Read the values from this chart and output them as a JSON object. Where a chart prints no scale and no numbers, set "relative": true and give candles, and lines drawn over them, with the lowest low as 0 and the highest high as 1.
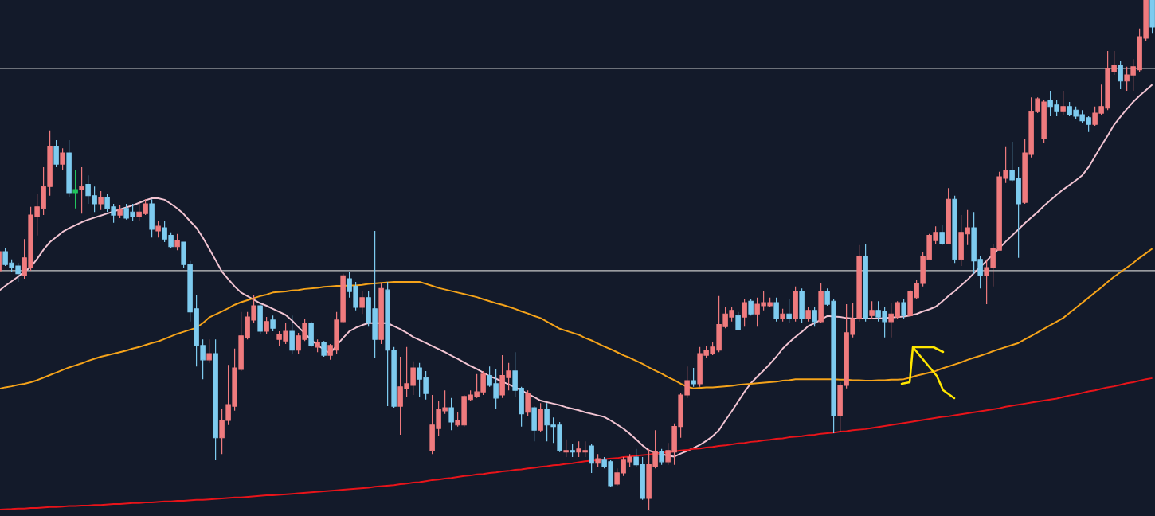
{
  "chart_data": {
    "type": "candlestick",
    "relative": true,
    "colors": [
      "#ef7b7e",
      "#7ecbef",
      "#7ecbef",
      "#7ecbef",
      "#ef7b7e",
      "#ef7b7e",
      "#ef7b7e",
      "#ef7b7e",
      "#ef7b7e",
      "#7ecbef",
      "#ef7b7e",
      "#7ecbef",
      "#22c55e",
      "#ef7b7e",
      "#7ecbef",
      "#7ecbef",
      "#ef7b7e",
      "#7ecbef",
      "#7ecbef",
      "#ef7b7e",
      "#7ecbef",
      "#7ecbef",
      "#ef7b7e",
      "#ef7b7e",
      "#7ecbef",
      "#ef7b7e",
      "#7ecbef",
      "#7ecbef",
      "#ef7b7e",
      "#7ecbef",
      "#7ecbef",
      "#7ecbef",
      "#7ecbef",
      "#ef7b7e",
      "#7ecbef",
      "#ef7b7e",
      "#ef7b7e",
      "#ef7b7e",
      "#ef7b7e",
      "#ef7b7e",
      "#ef7b7e",
      "#7ecbef",
      "#ef7b7e",
      "#7ecbef",
      "#ef7b7e",
      "#ef7b7e",
      "#7ecbef",
      "#ef7b7e",
      "#ef7b7e",
      "#7ecbef",
      "#ef7b7e",
      "#7ecbef",
      "#ef7b7e",
      "#ef7b7e",
      "#ef7b7e",
      "#7ecbef",
      "#7ecbef",
      "#ef7b7e",
      "#7ecbef",
      "#7ecbef",
      "#ef7b7e",
      "#7ecbef",
      "#7ecbef",
      "#ef7b7e",
      "#ef7b7e",
      "#ef7b7e",
      "#7ecbef",
      "#7ecbef",
      "#ef7b7e",
      "#ef7b7e",
      "#ef7b7e",
      "#7ecbef",
      "#ef7b7e",
      "#ef7b7e",
      "#ef7b7e",
      "#ef7b7e",
      "#ef7b7e",
      "#7ecbef",
      "#7ecbef",
      "#ef7b7e",
      "#ef7b7e",
      "#7ecbef",
      "#7ecbef",
      "#ef7b7e",
      "#7ecbef",
      "#ef7b7e",
      "#7ecbef",
      "#7ecbef",
      "#7ecbef",
      "#ef7b7e",
      "#7ecbef",
      "#ef7b7e",
      "#ef7b7e",
      "#7ecbef",
      "#ef7b7e",
      "#7ecbef",
      "#7ecbef",
      "#ef7b7e",
      "#ef7b7e",
      "#ef7b7e",
      "#7ecbef",
      "#7ecbef",
      "#ef7b7e",
      "#ef7b7e",
      "#7ecbef",
      "#ef7b7e",
      "#ef7b7e",
      "#ef7b7e",
      "#ef7b7e",
      "#7ecbef",
      "#ef7b7e",
      "#ef7b7e",
      "#ef7b7e",
      "#ef7b7e",
      "#ef7b7e",
      "#ef7b7e",
      "#7ecbef",
      "#ef7b7e",
      "#7ecbef",
      "#ef7b7e",
      "#ef7b7e",
      "#ef7b7e",
      "#7ecbef",
      "#ef7b7e",
      "#7ecbef",
      "#ef7b7e",
      "#7ecbef",
      "#ef7b7e",
      "#7ecbef",
      "#ef7b7e",
      "#7ecbef",
      "#7ecbef",
      "#ef7b7e",
      "#ef7b7e",
      "#ef7b7e",
      "#ef7b7e",
      "#7ecbef",
      "#ef7b7e",
      "#7ecbef",
      "#7ecbef",
      "#ef7b7e",
      "#ef7b7e",
      "#7ecbef",
      "#ef7b7e",
      "#ef7b7e",
      "#ef7b7e",
      "#ef7b7e",
      "#ef7b7e",
      "#7ecbef",
      "#ef7b7e",
      "#7ecbef",
      "#ef7b7e",
      "#ef7b7e",
      "#7ecbef",
      "#7ecbef",
      "#ef7b7e",
      "#ef7b7e",
      "#ef7b7e",
      "#ef7b7e",
      "#7ecbef",
      "#7ecbef",
      "#ef7b7e",
      "#ef7b7e",
      "#ef7b7e",
      "#ef7b7e",
      "#7ecbef",
      "#7ecbef",
      "#ef7b7e",
      "#7ecbef",
      "#7ecbef",
      "#7ecbef",
      "#7ecbef",
      "#ef7b7e",
      "#ef7b7e",
      "#ef7b7e",
      "#ef7b7e",
      "#7ecbef",
      "#ef7b7e",
      "#ef7b7e",
      "#ef7b7e",
      "#ef7b7e",
      "#7ecbef"
    ],
    "categories": [
      null,
      null,
      null,
      null,
      null,
      null,
      null,
      null,
      null,
      null,
      null,
      null,
      null,
      null,
      null,
      null,
      null,
      null,
      null,
      null,
      null,
      null,
      null,
      null,
      null,
      null,
      null,
      null,
      null,
      null,
      null,
      null,
      null,
      null,
      null,
      null,
      null,
      null,
      null,
      null,
      null,
      null,
      null,
      null,
      null,
      null,
      null,
      null,
      null,
      null,
      null,
      null,
      null,
      null,
      null,
      null,
      null,
      null,
      null,
      null,
      null,
      null,
      null,
      null,
      null,
      null,
      null,
      null,
      null,
      null,
      null,
      null,
      null,
      null,
      null,
      null,
      null,
      null,
      null,
      null,
      null,
      null,
      null,
      null,
      null,
      null,
      null,
      null,
      null,
      null,
      null,
      null,
      null,
      null,
      null,
      null,
      null,
      null,
      null,
      null,
      null,
      null,
      null,
      null,
      null,
      null,
      null,
      null,
      null,
      null,
      null,
      null,
      null,
      null,
      null,
      null,
      null,
      null,
      null,
      null,
      null,
      null,
      null,
      null,
      null,
      null,
      null,
      null,
      null,
      null,
      null,
      null,
      null,
      null,
      null,
      null,
      null,
      null,
      null,
      null,
      null,
      null,
      null,
      null,
      null,
      null,
      null,
      null,
      null,
      null,
      null,
      null,
      null,
      null,
      null,
      null,
      null,
      null,
      null,
      null,
      null,
      null,
      null,
      null,
      null,
      null,
      null,
      null,
      null,
      null,
      null,
      null,
      null,
      null,
      null,
      null,
      null,
      null,
      null,
      null,
      null,
      null
    ],
    "ohlc": [
      [
        0.469,
        0.509,
        0.466,
        0.506
      ],
      [
        0.506,
        0.513,
        0.478,
        0.481
      ],
      [
        0.484,
        0.491,
        0.466,
        0.475
      ],
      [
        0.478,
        0.484,
        0.447,
        0.463
      ],
      [
        0.459,
        0.531,
        0.453,
        0.494
      ],
      [
        0.475,
        0.594,
        0.469,
        0.578
      ],
      [
        0.575,
        0.619,
        0.538,
        0.594
      ],
      [
        0.591,
        0.672,
        0.578,
        0.634
      ],
      [
        0.634,
        0.744,
        0.616,
        0.713
      ],
      [
        0.713,
        0.725,
        0.672,
        0.678
      ],
      [
        0.678,
        0.709,
        0.666,
        0.7
      ],
      [
        0.7,
        0.725,
        0.613,
        0.622
      ],
      [
        0.622,
        0.666,
        0.591,
        0.628
      ],
      [
        0.628,
        0.672,
        0.581,
        0.634
      ],
      [
        0.638,
        0.656,
        0.6,
        0.616
      ],
      [
        0.616,
        0.634,
        0.584,
        0.6
      ],
      [
        0.6,
        0.625,
        0.588,
        0.613
      ],
      [
        0.613,
        0.619,
        0.584,
        0.591
      ],
      [
        0.594,
        0.6,
        0.563,
        0.578
      ],
      [
        0.578,
        0.597,
        0.572,
        0.588
      ],
      [
        0.591,
        0.6,
        0.569,
        0.572
      ],
      [
        0.584,
        0.6,
        0.566,
        0.575
      ],
      [
        0.575,
        0.603,
        0.566,
        0.584
      ],
      [
        0.581,
        0.609,
        0.578,
        0.6
      ],
      [
        0.6,
        0.609,
        0.534,
        0.55
      ],
      [
        0.547,
        0.566,
        0.534,
        0.556
      ],
      [
        0.553,
        0.566,
        0.525,
        0.531
      ],
      [
        0.538,
        0.544,
        0.513,
        0.516
      ],
      [
        0.516,
        0.541,
        0.509,
        0.528
      ],
      [
        0.525,
        0.525,
        0.475,
        0.481
      ],
      [
        0.481,
        0.488,
        0.369,
        0.388
      ],
      [
        0.394,
        0.422,
        0.281,
        0.322
      ],
      [
        0.322,
        0.334,
        0.256,
        0.294
      ],
      [
        0.294,
        0.334,
        0.288,
        0.306
      ],
      [
        0.306,
        0.334,
        0.097,
        0.141
      ],
      [
        0.141,
        0.197,
        0.109,
        0.175
      ],
      [
        0.175,
        0.284,
        0.166,
        0.206
      ],
      [
        0.203,
        0.316,
        0.194,
        0.278
      ],
      [
        0.275,
        0.388,
        0.272,
        0.341
      ],
      [
        0.338,
        0.388,
        0.334,
        0.378
      ],
      [
        0.372,
        0.422,
        0.366,
        0.4
      ],
      [
        0.4,
        0.406,
        0.344,
        0.35
      ],
      [
        0.35,
        0.378,
        0.344,
        0.369
      ],
      [
        0.372,
        0.381,
        0.35,
        0.356
      ],
      [
        0.334,
        0.35,
        0.322,
        0.344
      ],
      [
        0.331,
        0.366,
        0.325,
        0.35
      ],
      [
        0.35,
        0.381,
        0.306,
        0.313
      ],
      [
        0.313,
        0.347,
        0.306,
        0.341
      ],
      [
        0.334,
        0.375,
        0.331,
        0.366
      ],
      [
        0.366,
        0.369,
        0.319,
        0.322
      ],
      [
        0.319,
        0.334,
        0.309,
        0.328
      ],
      [
        0.328,
        0.331,
        0.3,
        0.303
      ],
      [
        0.303,
        0.325,
        0.294,
        0.322
      ],
      [
        0.313,
        0.388,
        0.306,
        0.372
      ],
      [
        0.369,
        0.463,
        0.366,
        0.459
      ],
      [
        0.453,
        0.466,
        0.416,
        0.428
      ],
      [
        0.438,
        0.447,
        0.391,
        0.397
      ],
      [
        0.397,
        0.428,
        0.384,
        0.416
      ],
      [
        0.416,
        0.428,
        0.359,
        0.366
      ],
      [
        0.394,
        0.547,
        0.297,
        0.334
      ],
      [
        0.334,
        0.444,
        0.325,
        0.434
      ],
      [
        0.431,
        0.447,
        0.203,
        0.313
      ],
      [
        0.313,
        0.319,
        0.2,
        0.203
      ],
      [
        0.203,
        0.3,
        0.147,
        0.241
      ],
      [
        0.238,
        0.319,
        0.222,
        0.247
      ],
      [
        0.244,
        0.291,
        0.225,
        0.278
      ],
      [
        0.278,
        0.288,
        0.222,
        0.256
      ],
      [
        0.259,
        0.272,
        0.216,
        0.228
      ],
      [
        0.116,
        0.225,
        0.109,
        0.166
      ],
      [
        0.159,
        0.213,
        0.144,
        0.197
      ],
      [
        0.194,
        0.234,
        0.188,
        0.2
      ],
      [
        0.2,
        0.219,
        0.156,
        0.172
      ],
      [
        0.166,
        0.191,
        0.163,
        0.175
      ],
      [
        0.166,
        0.225,
        0.163,
        0.222
      ],
      [
        0.216,
        0.234,
        0.213,
        0.225
      ],
      [
        0.222,
        0.266,
        0.219,
        0.231
      ],
      [
        0.231,
        0.272,
        0.225,
        0.266
      ],
      [
        0.263,
        0.281,
        0.241,
        0.244
      ],
      [
        0.247,
        0.275,
        0.197,
        0.219
      ],
      [
        0.225,
        0.303,
        0.219,
        0.263
      ],
      [
        0.259,
        0.288,
        0.234,
        0.272
      ],
      [
        0.272,
        0.309,
        0.222,
        0.234
      ],
      [
        0.238,
        0.241,
        0.163,
        0.188
      ],
      [
        0.191,
        0.234,
        0.184,
        0.228
      ],
      [
        0.2,
        0.203,
        0.134,
        0.156
      ],
      [
        0.156,
        0.209,
        0.153,
        0.197
      ],
      [
        0.197,
        0.209,
        0.134,
        0.166
      ],
      [
        0.166,
        0.181,
        0.131,
        0.163
      ],
      [
        0.166,
        0.172,
        0.113,
        0.116
      ],
      [
        0.113,
        0.138,
        0.103,
        0.116
      ],
      [
        0.116,
        0.128,
        0.103,
        0.113
      ],
      [
        0.113,
        0.134,
        0.103,
        0.119
      ],
      [
        0.113,
        0.134,
        0.103,
        0.116
      ],
      [
        0.125,
        0.128,
        0.072,
        0.091
      ],
      [
        0.091,
        0.109,
        0.084,
        0.1
      ],
      [
        0.097,
        0.103,
        0.081,
        0.084
      ],
      [
        0.094,
        0.097,
        0.044,
        0.047
      ],
      [
        0.05,
        0.081,
        0.047,
        0.072
      ],
      [
        0.072,
        0.103,
        0.066,
        0.097
      ],
      [
        0.094,
        0.109,
        0.084,
        0.103
      ],
      [
        0.103,
        0.119,
        0.084,
        0.088
      ],
      [
        0.088,
        0.103,
        0.019,
        0.022
      ],
      [
        0.022,
        0.119,
        0,
        0.088
      ],
      [
        0.084,
        0.156,
        0.081,
        0.113
      ],
      [
        0.113,
        0.119,
        0.088,
        0.094
      ],
      [
        0.094,
        0.131,
        0.088,
        0.116
      ],
      [
        0.113,
        0.169,
        0.088,
        0.163
      ],
      [
        0.163,
        0.228,
        0.141,
        0.225
      ],
      [
        0.225,
        0.281,
        0.219,
        0.253
      ],
      [
        0.253,
        0.278,
        0.241,
        0.247
      ],
      [
        0.247,
        0.319,
        0.241,
        0.306
      ],
      [
        0.303,
        0.322,
        0.297,
        0.313
      ],
      [
        0.306,
        0.328,
        0.303,
        0.319
      ],
      [
        0.313,
        0.419,
        0.309,
        0.363
      ],
      [
        0.359,
        0.397,
        0.356,
        0.384
      ],
      [
        0.378,
        0.397,
        0.369,
        0.391
      ],
      [
        0.381,
        0.388,
        0.353,
        0.353
      ],
      [
        0.378,
        0.413,
        0.359,
        0.406
      ],
      [
        0.409,
        0.413,
        0.381,
        0.384
      ],
      [
        0.384,
        0.416,
        0.359,
        0.403
      ],
      [
        0.4,
        0.428,
        0.391,
        0.406
      ],
      [
        0.4,
        0.416,
        0.397,
        0.406
      ],
      [
        0.406,
        0.416,
        0.369,
        0.375
      ],
      [
        0.375,
        0.394,
        0.369,
        0.384
      ],
      [
        0.384,
        0.413,
        0.366,
        0.375
      ],
      [
        0.375,
        0.438,
        0.369,
        0.428
      ],
      [
        0.428,
        0.434,
        0.366,
        0.375
      ],
      [
        0.375,
        0.397,
        0.369,
        0.391
      ],
      [
        0.391,
        0.397,
        0.359,
        0.369
      ],
      [
        0.369,
        0.444,
        0.366,
        0.428
      ],
      [
        0.428,
        0.434,
        0.4,
        0.403
      ],
      [
        0.409,
        0.413,
        0.15,
        0.184
      ],
      [
        0.184,
        0.25,
        0.153,
        0.244
      ],
      [
        0.244,
        0.403,
        0.238,
        0.347
      ],
      [
        0.344,
        0.406,
        0.338,
        0.375
      ],
      [
        0.375,
        0.519,
        0.369,
        0.497
      ],
      [
        0.497,
        0.522,
        0.369,
        0.375
      ],
      [
        0.381,
        0.409,
        0.375,
        0.391
      ],
      [
        0.391,
        0.409,
        0.369,
        0.378
      ],
      [
        0.388,
        0.397,
        0.338,
        0.369
      ],
      [
        0.369,
        0.406,
        0.338,
        0.384
      ],
      [
        0.378,
        0.409,
        0.375,
        0.406
      ],
      [
        0.406,
        0.413,
        0.375,
        0.381
      ],
      [
        0.381,
        0.431,
        0.378,
        0.428
      ],
      [
        0.416,
        0.45,
        0.413,
        0.444
      ],
      [
        0.444,
        0.506,
        0.438,
        0.497
      ],
      [
        0.491,
        0.541,
        0.491,
        0.538
      ],
      [
        0.528,
        0.556,
        0.522,
        0.544
      ],
      [
        0.544,
        0.559,
        0.519,
        0.522
      ],
      [
        0.522,
        0.631,
        0.522,
        0.609
      ],
      [
        0.609,
        0.616,
        0.484,
        0.491
      ],
      [
        0.491,
        0.578,
        0.478,
        0.544
      ],
      [
        0.541,
        0.588,
        0.519,
        0.553
      ],
      [
        0.553,
        0.584,
        0.463,
        0.488
      ],
      [
        0.491,
        0.497,
        0.434,
        0.459
      ],
      [
        0.459,
        0.491,
        0.403,
        0.475
      ],
      [
        0.475,
        0.522,
        0.438,
        0.513
      ],
      [
        0.509,
        0.663,
        0.509,
        0.653
      ],
      [
        0.65,
        0.713,
        0.641,
        0.666
      ],
      [
        0.666,
        0.722,
        0.644,
        0.647
      ],
      [
        0.65,
        0.672,
        0.494,
        0.6
      ],
      [
        0.603,
        0.728,
        0.6,
        0.7
      ],
      [
        0.697,
        0.809,
        0.691,
        0.781
      ],
      [
        0.781,
        0.809,
        0.778,
        0.806
      ],
      [
        0.728,
        0.803,
        0.719,
        0.8
      ],
      [
        0.803,
        0.822,
        0.772,
        0.791
      ],
      [
        0.794,
        0.803,
        0.772,
        0.781
      ],
      [
        0.781,
        0.822,
        0.775,
        0.791
      ],
      [
        0.791,
        0.8,
        0.772,
        0.775
      ],
      [
        0.784,
        0.791,
        0.766,
        0.772
      ],
      [
        0.775,
        0.784,
        0.759,
        0.763
      ],
      [
        0.769,
        0.772,
        0.741,
        0.756
      ],
      [
        0.756,
        0.791,
        0.753,
        0.778
      ],
      [
        0.778,
        0.834,
        0.775,
        0.791
      ],
      [
        0.788,
        0.9,
        0.784,
        0.866
      ],
      [
        0.859,
        0.9,
        0.853,
        0.872
      ],
      [
        0.872,
        0.881,
        0.825,
        0.841
      ],
      [
        0.841,
        0.869,
        0.822,
        0.853
      ],
      [
        0.853,
        0.884,
        0.822,
        0.869
      ],
      [
        0.863,
        0.944,
        0.859,
        0.928
      ],
      [
        0.925,
        1,
        0.919,
        1
      ],
      [
        1,
        1,
        0.934,
        0.947
      ]
    ],
    "series": [
      {
        "type": "line",
        "color": "#f2c4d2",
        "values": [
          0.429,
          0.439,
          0.448,
          0.457,
          0.467,
          0.476,
          0.492,
          0.51,
          0.525,
          0.535,
          0.545,
          0.552,
          0.558,
          0.564,
          0.569,
          0.573,
          0.577,
          0.581,
          0.585,
          0.589,
          0.593,
          0.597,
          0.602,
          0.607,
          0.611,
          0.611,
          0.608,
          0.6,
          0.591,
          0.58,
          0.566,
          0.553,
          0.534,
          0.512,
          0.49,
          0.467,
          0.452,
          0.438,
          0.426,
          0.419,
          0.412,
          0.405,
          0.4,
          0.394,
          0.388,
          0.382,
          0.371,
          0.358,
          0.346,
          0.333,
          0.323,
          0.314,
          0.307,
          0.322,
          0.337,
          0.35,
          0.357,
          0.362,
          0.366,
          0.366,
          0.366,
          0.366,
          0.36,
          0.354,
          0.347,
          0.339,
          0.333,
          0.327,
          0.321,
          0.315,
          0.309,
          0.302,
          0.296,
          0.289,
          0.282,
          0.276,
          0.269,
          0.262,
          0.257,
          0.251,
          0.246,
          0.24,
          0.234,
          0.227,
          0.221,
          0.214,
          0.211,
          0.208,
          0.205,
          0.201,
          0.198,
          0.195,
          0.191,
          0.188,
          0.185,
          0.182,
          0.175,
          0.167,
          0.159,
          0.149,
          0.138,
          0.126,
          0.116,
          0.112,
          0.109,
          0.106,
          0.104,
          0.11,
          0.115,
          0.121,
          0.127,
          0.135,
          0.144,
          0.156,
          0.175,
          0.193,
          0.212,
          0.231,
          0.248,
          0.261,
          0.273,
          0.286,
          0.3,
          0.316,
          0.328,
          0.339,
          0.349,
          0.36,
          0.366,
          0.373,
          0.38,
          0.379,
          0.378,
          0.376,
          0.375,
          0.375,
          0.375,
          0.375,
          0.375,
          0.376,
          0.377,
          0.378,
          0.379,
          0.381,
          0.384,
          0.389,
          0.393,
          0.398,
          0.408,
          0.419,
          0.429,
          0.44,
          0.451,
          0.464,
          0.476,
          0.488,
          0.501,
          0.513,
          0.526,
          0.538,
          0.55,
          0.562,
          0.573,
          0.584,
          0.596,
          0.607,
          0.618,
          0.628,
          0.637,
          0.646,
          0.656,
          0.672,
          0.693,
          0.714,
          0.734,
          0.755,
          0.771,
          0.786,
          0.8,
          0.812,
          0.823,
          0.834
        ]
      },
      {
        "type": "line",
        "color": "#f5a31a",
        "values": [
          0.237,
          0.24,
          0.242,
          0.245,
          0.247,
          0.25,
          0.254,
          0.259,
          0.264,
          0.269,
          0.274,
          0.279,
          0.283,
          0.287,
          0.292,
          0.296,
          0.3,
          0.303,
          0.306,
          0.309,
          0.312,
          0.316,
          0.319,
          0.323,
          0.327,
          0.33,
          0.335,
          0.34,
          0.345,
          0.349,
          0.353,
          0.357,
          0.366,
          0.377,
          0.383,
          0.389,
          0.395,
          0.402,
          0.407,
          0.411,
          0.415,
          0.419,
          0.422,
          0.426,
          0.427,
          0.428,
          0.43,
          0.431,
          0.433,
          0.434,
          0.435,
          0.437,
          0.438,
          0.439,
          0.439,
          0.44,
          0.44,
          0.441,
          0.443,
          0.444,
          0.445,
          0.446,
          0.447,
          0.447,
          0.447,
          0.447,
          0.447,
          0.443,
          0.439,
          0.435,
          0.432,
          0.429,
          0.426,
          0.423,
          0.42,
          0.417,
          0.413,
          0.409,
          0.405,
          0.402,
          0.398,
          0.394,
          0.389,
          0.385,
          0.38,
          0.376,
          0.369,
          0.362,
          0.355,
          0.351,
          0.347,
          0.343,
          0.337,
          0.332,
          0.326,
          0.32,
          0.315,
          0.309,
          0.303,
          0.298,
          0.292,
          0.286,
          0.279,
          0.273,
          0.267,
          0.26,
          0.254,
          0.247,
          0.241,
          0.238,
          0.239,
          0.24,
          0.24,
          0.241,
          0.242,
          0.243,
          0.245,
          0.246,
          0.247,
          0.248,
          0.249,
          0.25,
          0.251,
          0.253,
          0.254,
          0.256,
          0.256,
          0.256,
          0.256,
          0.256,
          0.256,
          0.256,
          0.255,
          0.255,
          0.254,
          0.254,
          0.253,
          0.253,
          0.254,
          0.254,
          0.255,
          0.255,
          0.256,
          0.259,
          0.263,
          0.266,
          0.269,
          0.272,
          0.277,
          0.281,
          0.285,
          0.289,
          0.294,
          0.298,
          0.302,
          0.306,
          0.311,
          0.315,
          0.319,
          0.323,
          0.327,
          0.334,
          0.341,
          0.348,
          0.355,
          0.362,
          0.369,
          0.376,
          0.386,
          0.396,
          0.406,
          0.416,
          0.426,
          0.436,
          0.447,
          0.457,
          0.466,
          0.475,
          0.484,
          0.494,
          0.503,
          0.512
        ]
      },
      {
        "type": "line",
        "color": "#e8141a",
        "values": [
          0,
          0.0005,
          0.001,
          0.002,
          0.002,
          0.003,
          0.003,
          0.004,
          0.005,
          0.005,
          0.006,
          0.007,
          0.007,
          0.008,
          0.008,
          0.009,
          0.009,
          0.01,
          0.011,
          0.011,
          0.012,
          0.013,
          0.013,
          0.014,
          0.014,
          0.015,
          0.016,
          0.016,
          0.017,
          0.017,
          0.018,
          0.019,
          0.019,
          0.02,
          0.021,
          0.022,
          0.023,
          0.024,
          0.024,
          0.025,
          0.026,
          0.027,
          0.028,
          0.028,
          0.029,
          0.03,
          0.031,
          0.032,
          0.033,
          0.034,
          0.035,
          0.036,
          0.037,
          0.038,
          0.039,
          0.04,
          0.041,
          0.042,
          0.043,
          0.045,
          0.046,
          0.047,
          0.048,
          0.05,
          0.051,
          0.053,
          0.054,
          0.056,
          0.058,
          0.059,
          0.061,
          0.062,
          0.064,
          0.066,
          0.067,
          0.069,
          0.07,
          0.072,
          0.073,
          0.075,
          0.076,
          0.078,
          0.079,
          0.081,
          0.082,
          0.084,
          0.085,
          0.087,
          0.088,
          0.09,
          0.091,
          0.093,
          0.095,
          0.096,
          0.097,
          0.099,
          0.1,
          0.101,
          0.103,
          0.104,
          0.106,
          0.107,
          0.108,
          0.11,
          0.111,
          0.113,
          0.114,
          0.116,
          0.117,
          0.119,
          0.12,
          0.122,
          0.123,
          0.125,
          0.126,
          0.128,
          0.13,
          0.131,
          0.133,
          0.134,
          0.136,
          0.137,
          0.139,
          0.14,
          0.142,
          0.143,
          0.144,
          0.146,
          0.147,
          0.149,
          0.15,
          0.151,
          0.153,
          0.154,
          0.156,
          0.157,
          0.158,
          0.16,
          0.162,
          0.164,
          0.166,
          0.168,
          0.17,
          0.172,
          0.174,
          0.176,
          0.178,
          0.18,
          0.182,
          0.183,
          0.185,
          0.187,
          0.189,
          0.191,
          0.193,
          0.195,
          0.197,
          0.199,
          0.202,
          0.204,
          0.206,
          0.208,
          0.21,
          0.212,
          0.214,
          0.216,
          0.218,
          0.221,
          0.224,
          0.226,
          0.229,
          0.232,
          0.234,
          0.237,
          0.24,
          0.242,
          0.245,
          0.248,
          0.25,
          0.253,
          0.256,
          0.258
        ]
      }
    ],
    "ref_lines": [
      {
        "axis": "y",
        "value": 0.866,
        "color": "#c8c8c8"
      },
      {
        "axis": "y",
        "value": 0.469,
        "color": "#c8c8c8"
      }
    ]
  }
}
